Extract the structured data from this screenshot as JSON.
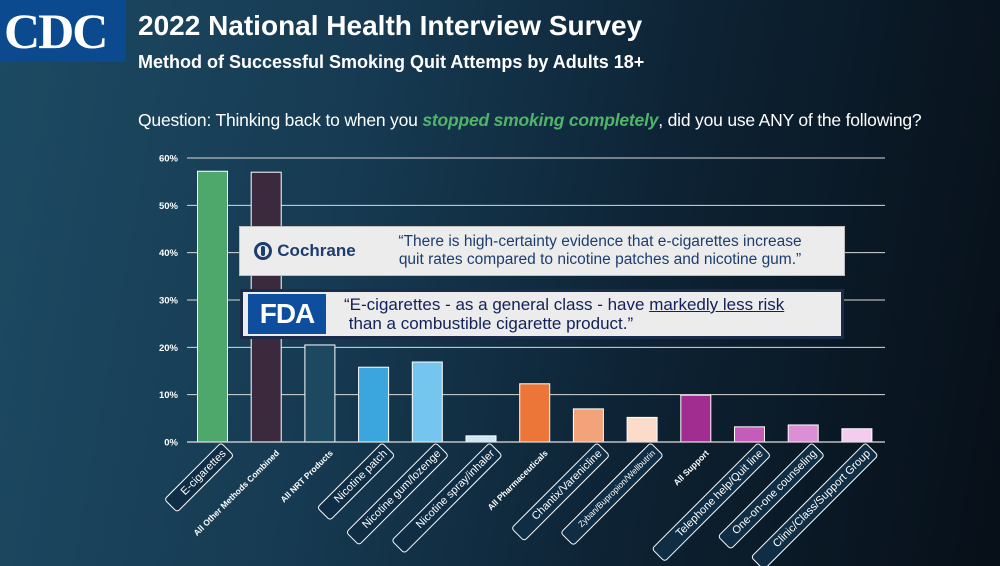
{
  "header": {
    "logo_text": "CDC",
    "title": "2022 National Health Interview Survey",
    "subtitle": "Method of Successful Smoking Quit Attemps by Adults 18+"
  },
  "question": {
    "prefix": "Question: Thinking back to when you ",
    "emphasis": "stopped smoking completely",
    "suffix": ", did you use ANY of the following?"
  },
  "callouts": {
    "cochrane": {
      "logo_name": "Cochrane",
      "quote_line1": "“There is high-certainty evidence that e-cigarettes increase",
      "quote_line2": "quit rates compared to nicotine patches and nicotine gum.”"
    },
    "fda": {
      "logo_name": "FDA",
      "quote_part1": "“E-cigarettes - as a general class - have ",
      "quote_underlined": "markedly less risk",
      "quote_line2": " than a combustible cigarette product.”"
    }
  },
  "chart_data": {
    "type": "bar",
    "ylim": [
      0,
      60
    ],
    "yticks": [
      0,
      10,
      20,
      30,
      40,
      50,
      60
    ],
    "ytick_labels": [
      "0%",
      "10%",
      "20%",
      "30%",
      "40%",
      "50%",
      "60%"
    ],
    "grid": true,
    "categories": [
      "E-cigarettes",
      "All Other Methods Combined",
      "All NRT Products",
      "Nicotine patch",
      "Nicotine gum/lozenge",
      "Nicotine spray/inhaler",
      "All Pharmaceuticals",
      "Chantix/Varenicline",
      "Zyban/Bupropion/Wellbutrin",
      "All Support",
      "Telephone help/Quit line",
      "One-on-one counseling",
      "Clinic/Class/Support Group"
    ],
    "values": [
      57.2,
      57.0,
      20.5,
      15.8,
      16.9,
      1.3,
      12.3,
      7.0,
      5.2,
      9.9,
      3.2,
      3.6,
      2.8
    ],
    "bar_colors": [
      "#4ea86b",
      "#3b2a3e",
      "#1d4960",
      "#3aa6dd",
      "#74c6ee",
      "#cfe8f6",
      "#ec7637",
      "#f2a37a",
      "#fbdccb",
      "#a02d8f",
      "#c65cba",
      "#dd8fd5",
      "#f2cdf0"
    ],
    "label_styles": [
      "boxed",
      "plain-bold",
      "plain-bold",
      "boxed",
      "boxed",
      "boxed",
      "plain-bold",
      "boxed",
      "boxed-small",
      "plain-bold",
      "boxed",
      "boxed",
      "boxed"
    ]
  }
}
